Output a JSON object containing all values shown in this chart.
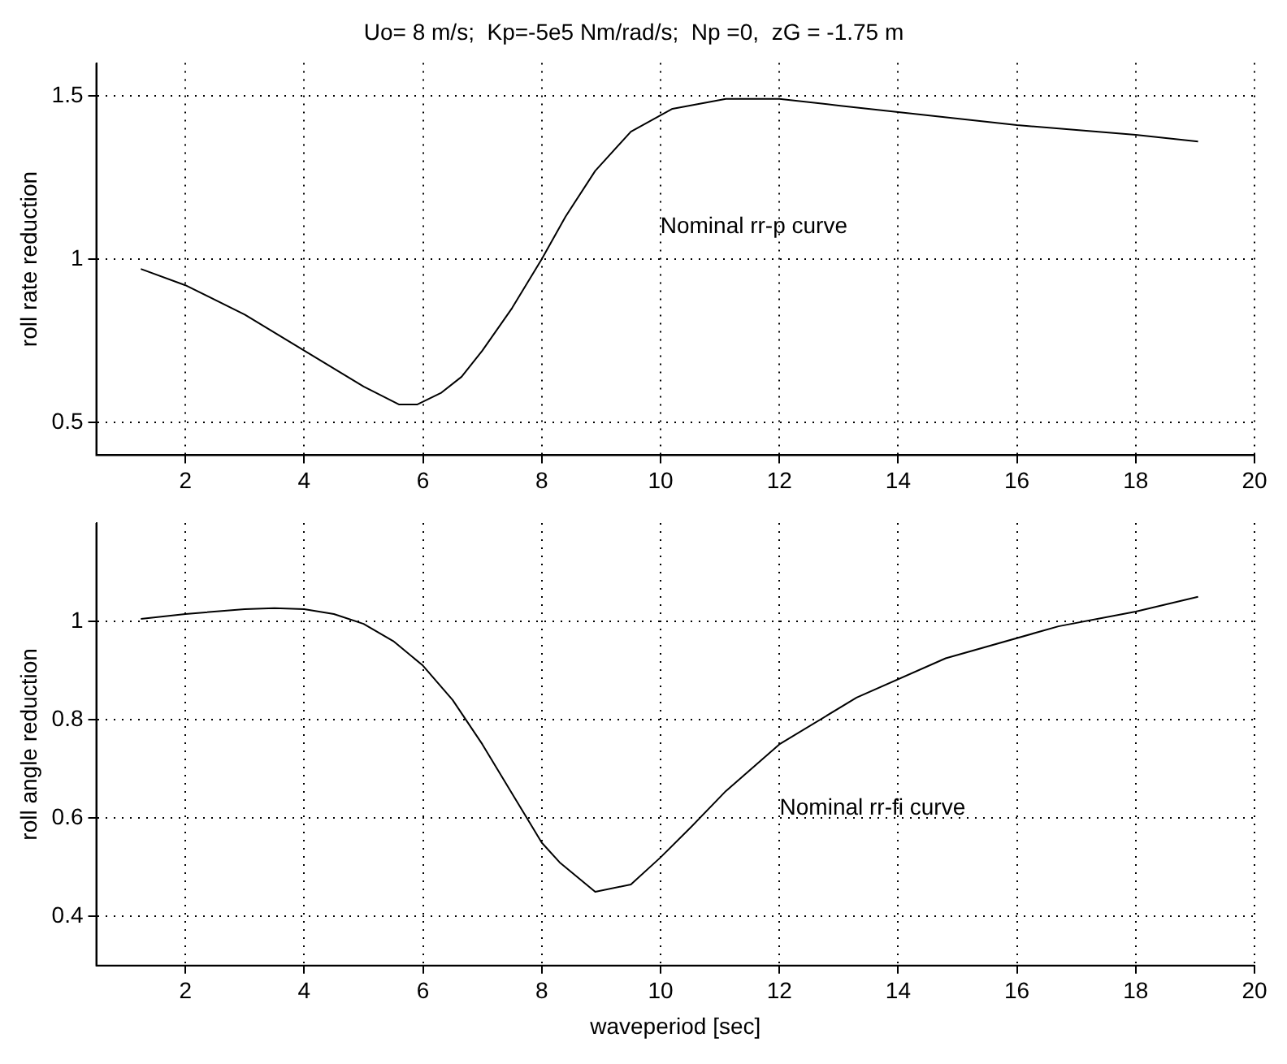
{
  "chart_data": [
    {
      "type": "line",
      "title": "Uo= 8 m/s;  Kp=-5e5 Nm/rad/s;  Np =0,  zG = -1.75 m",
      "ylabel": "roll rate reduction",
      "x": [
        1.25,
        2,
        3,
        4,
        5,
        5.6,
        5.9,
        6.3,
        6.65,
        7,
        7.5,
        8,
        8.4,
        8.9,
        9.5,
        10.2,
        11.1,
        12,
        13,
        14,
        15,
        16,
        17,
        18,
        19.05
      ],
      "series": [
        {
          "color": "#000000",
          "values": [
            0.97,
            0.92,
            0.83,
            0.72,
            0.61,
            0.555,
            0.555,
            0.59,
            0.64,
            0.72,
            0.85,
            1.0,
            1.13,
            1.27,
            1.39,
            1.46,
            1.49,
            1.49,
            1.47,
            1.45,
            1.43,
            1.41,
            1.395,
            1.38,
            1.36
          ]
        }
      ],
      "annotations": [
        "Nominal rr-p curve"
      ],
      "xlim": [
        0.5,
        20
      ],
      "xticks": [
        2,
        4,
        6,
        8,
        10,
        12,
        14,
        16,
        18,
        20
      ],
      "ylim": [
        0.4,
        1.6
      ],
      "yticks": [
        0.5,
        1,
        1.5
      ],
      "grid": true,
      "legend": false,
      "marker": "none",
      "line_style": "solid"
    },
    {
      "type": "line",
      "xlabel": "waveperiod [sec]",
      "ylabel": "roll angle reduction",
      "x": [
        1.25,
        2,
        3,
        3.5,
        4,
        4.5,
        5,
        5.5,
        6,
        6.5,
        7,
        7.5,
        8,
        8.3,
        8.9,
        9.5,
        10,
        10.5,
        11.1,
        12,
        13.3,
        14.8,
        16.7,
        18,
        19.05
      ],
      "series": [
        {
          "color": "#000000",
          "values": [
            1.005,
            1.015,
            1.025,
            1.027,
            1.025,
            1.015,
            0.995,
            0.96,
            0.91,
            0.84,
            0.75,
            0.65,
            0.55,
            0.51,
            0.45,
            0.465,
            0.52,
            0.58,
            0.655,
            0.75,
            0.845,
            0.925,
            0.99,
            1.02,
            1.05
          ]
        }
      ],
      "annotations": [
        "Nominal rr-fi curve"
      ],
      "xlim": [
        0.5,
        20
      ],
      "xticks": [
        2,
        4,
        6,
        8,
        10,
        12,
        14,
        16,
        18,
        20
      ],
      "ylim": [
        0.3,
        1.2
      ],
      "yticks": [
        0.4,
        0.6,
        0.8,
        1
      ],
      "grid": true,
      "legend": false,
      "marker": "none",
      "line_style": "solid"
    }
  ]
}
